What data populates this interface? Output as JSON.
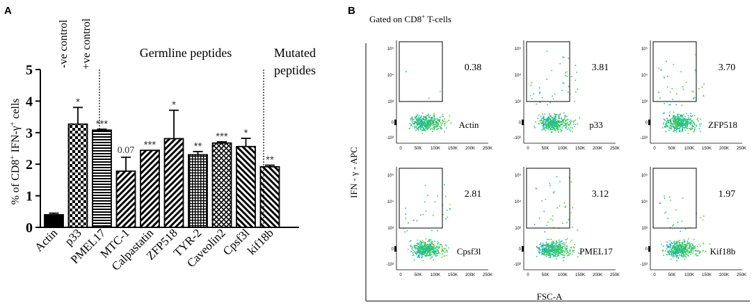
{
  "panel_labels": {
    "a": "A",
    "b": "B"
  },
  "panel_b_title_prefix": "Gated on CD8",
  "panel_b_title_sup": "+",
  "panel_b_title_suffix": " T-cells",
  "chart_data": [
    {
      "type": "bar",
      "title": "",
      "ylabel": "% of CD8+ IFN-γ+ cells",
      "ylabel_parts": [
        "% of CD8",
        "+",
        " IFN-γ",
        "+",
        " cells"
      ],
      "ylim": [
        0,
        5
      ],
      "yticks": [
        "0",
        "1",
        "2",
        "3",
        "4",
        "5"
      ],
      "categories": [
        "Actin",
        "p33",
        "PMEL17",
        "MTC-1",
        "Calpastatin",
        "ZFP518",
        "TYR-2",
        "Caveolin2",
        "Cpsf3l",
        "kif18b"
      ],
      "values": [
        0.4,
        3.27,
        3.08,
        1.78,
        2.44,
        2.81,
        2.3,
        2.67,
        2.56,
        1.92
      ],
      "errors": [
        0.05,
        0.53,
        0.03,
        0.44,
        0.0,
        0.9,
        0.1,
        0.04,
        0.26,
        0.05
      ],
      "significance": [
        "",
        "*",
        "***",
        "0.07",
        "***",
        "*",
        "**",
        "***",
        "*",
        "**"
      ],
      "patterns": [
        "solid",
        "checker",
        "hlines",
        "diag",
        "diag",
        "diag",
        "grid",
        "crosshatch",
        "rdiag",
        "rdiag"
      ],
      "group_labels": {
        "neg_control": "-ve control",
        "pos_control": "+ve control",
        "germline": "Germline peptides",
        "mutated_line1": "Mutated",
        "mutated_line2": "peptides"
      }
    },
    {
      "type": "scatter",
      "xlabel": "FSC-A",
      "ylabel": "IFN - γ - APC",
      "x_ticks": [
        "0",
        "50K",
        "100K",
        "150K",
        "200K",
        "250K"
      ],
      "y_ticks_top": [
        "10⁵",
        "10⁴",
        "10³",
        "0",
        "-10³"
      ],
      "panels": [
        {
          "sample": "Actin",
          "percent": "0.38",
          "positive_events": 3
        },
        {
          "sample": "p33",
          "percent": "3.81",
          "positive_events": 40
        },
        {
          "sample": "ZFP518",
          "percent": "3.70",
          "positive_events": 38
        },
        {
          "sample": "Cpsf3l",
          "percent": "2.81",
          "positive_events": 30
        },
        {
          "sample": "PMEL17",
          "percent": "3.12",
          "positive_events": 34
        },
        {
          "sample": "Kif18b",
          "percent": "1.97",
          "positive_events": 22
        }
      ]
    }
  ]
}
